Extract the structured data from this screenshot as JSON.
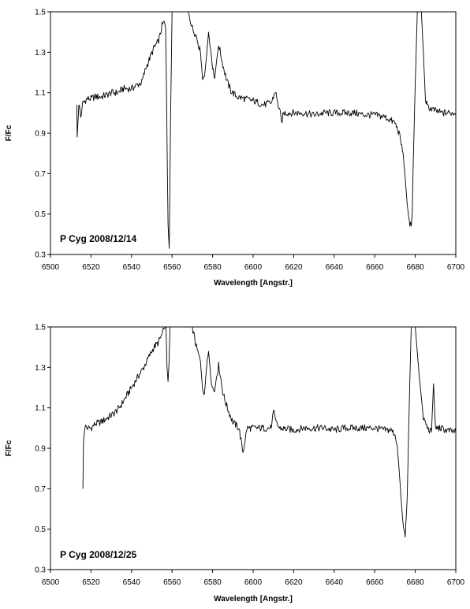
{
  "chart_data": [
    {
      "type": "line",
      "annotation": "P Cyg 2008/12/14",
      "xlabel": "Wavelength [Angstr.]",
      "ylabel": "F/Fc",
      "xlim": [
        6500,
        6700
      ],
      "ylim": [
        0.3,
        1.5
      ],
      "xticks": [
        6500,
        6520,
        6540,
        6560,
        6580,
        6600,
        6620,
        6640,
        6660,
        6680,
        6700
      ],
      "yticks": [
        "0.3",
        "0.5",
        "0.7",
        "0.9",
        "1.1",
        "1.3",
        "1.5"
      ],
      "grid": false,
      "series": [
        {
          "x": [
            6513,
            6513.2,
            6514,
            6515,
            6516,
            6518,
            6520,
            6522,
            6525,
            6528,
            6530,
            6533,
            6536,
            6540,
            6543,
            6545,
            6547,
            6549,
            6551,
            6553,
            6554,
            6555,
            6556,
            6556.8,
            6557.2,
            6557.6,
            6558,
            6558.6,
            6559.3,
            6560,
            6568,
            6570,
            6572,
            6574,
            6575,
            6576,
            6577,
            6578,
            6579,
            6580,
            6581,
            6582,
            6583,
            6584,
            6585,
            6587,
            6589,
            6592,
            6596,
            6600,
            6605,
            6609,
            6611,
            6612,
            6613,
            6614,
            6615,
            6620,
            6625,
            6630,
            6635,
            6640,
            6645,
            6650,
            6655,
            6660,
            6665,
            6670,
            6672,
            6674,
            6675,
            6676,
            6677,
            6678,
            6678.5,
            6679,
            6680,
            6681,
            6682,
            6683,
            6684,
            6685,
            6686,
            6688,
            6690,
            6693,
            6696,
            6700
          ],
          "y": [
            1.04,
            0.88,
            1.05,
            0.98,
            1.05,
            1.07,
            1.07,
            1.08,
            1.08,
            1.09,
            1.1,
            1.1,
            1.12,
            1.12,
            1.14,
            1.15,
            1.22,
            1.27,
            1.32,
            1.35,
            1.38,
            1.43,
            1.45,
            1.42,
            1.15,
            0.8,
            0.45,
            0.33,
            1.0,
            1.5,
            1.5,
            1.42,
            1.38,
            1.3,
            1.18,
            1.18,
            1.28,
            1.4,
            1.32,
            1.22,
            1.17,
            1.26,
            1.34,
            1.29,
            1.24,
            1.16,
            1.11,
            1.08,
            1.07,
            1.06,
            1.04,
            1.05,
            1.11,
            1.05,
            1.02,
            0.95,
            1.0,
            1.0,
            1.0,
            0.99,
            1.0,
            1.0,
            1.0,
            1.0,
            0.99,
            0.99,
            0.98,
            0.95,
            0.9,
            0.8,
            0.68,
            0.55,
            0.46,
            0.44,
            0.5,
            0.75,
            1.15,
            1.5,
            1.5,
            1.5,
            1.3,
            1.07,
            1.03,
            1.02,
            1.01,
            1.0,
            1.0,
            1.0
          ]
        }
      ]
    },
    {
      "type": "line",
      "annotation": "P Cyg 2008/12/25",
      "xlabel": "Wavelength [Angstr.]",
      "ylabel": "F/Fc",
      "xlim": [
        6500,
        6700
      ],
      "ylim": [
        0.3,
        1.5
      ],
      "xticks": [
        6500,
        6520,
        6540,
        6560,
        6580,
        6600,
        6620,
        6640,
        6660,
        6680,
        6700
      ],
      "yticks": [
        "0.3",
        "0.5",
        "0.7",
        "0.9",
        "1.1",
        "1.3",
        "1.5"
      ],
      "grid": false,
      "series": [
        {
          "x": [
            6516,
            6516.3,
            6517,
            6518,
            6520,
            6522,
            6525,
            6528,
            6531,
            6534,
            6537,
            6540,
            6543,
            6546,
            6549,
            6551,
            6553,
            6555,
            6556,
            6557,
            6557.5,
            6558,
            6558.5,
            6559,
            6560,
            6570,
            6572,
            6574,
            6575,
            6576,
            6577,
            6578,
            6579,
            6580,
            6581,
            6582,
            6583,
            6584,
            6585,
            6586,
            6588,
            6590,
            6593,
            6595,
            6597,
            6600,
            6605,
            6609,
            6610,
            6611,
            6613,
            6620,
            6625,
            6630,
            6635,
            6640,
            6645,
            6650,
            6655,
            6660,
            6665,
            6668,
            6670,
            6671,
            6672,
            6673,
            6674,
            6675,
            6676,
            6677,
            6678,
            6680,
            6682,
            6684,
            6686,
            6688,
            6689,
            6690,
            6692,
            6695,
            6700
          ],
          "y": [
            0.7,
            0.93,
            1.01,
            1.0,
            1.0,
            1.02,
            1.03,
            1.05,
            1.07,
            1.1,
            1.15,
            1.2,
            1.25,
            1.3,
            1.36,
            1.4,
            1.42,
            1.46,
            1.49,
            1.5,
            1.3,
            1.23,
            1.32,
            1.5,
            1.5,
            1.5,
            1.4,
            1.33,
            1.2,
            1.17,
            1.3,
            1.38,
            1.27,
            1.2,
            1.18,
            1.26,
            1.31,
            1.25,
            1.18,
            1.14,
            1.08,
            1.03,
            1.0,
            0.88,
            1.0,
            1.0,
            1.0,
            1.0,
            1.1,
            1.03,
            1.0,
            0.99,
            1.0,
            1.0,
            1.0,
            0.99,
            1.0,
            1.0,
            1.0,
            1.0,
            0.99,
            0.99,
            0.97,
            0.92,
            0.8,
            0.65,
            0.52,
            0.46,
            0.65,
            1.1,
            1.5,
            1.5,
            1.25,
            1.05,
            1.0,
            0.98,
            1.22,
            1.0,
            1.0,
            0.99,
            0.98
          ]
        }
      ]
    }
  ]
}
